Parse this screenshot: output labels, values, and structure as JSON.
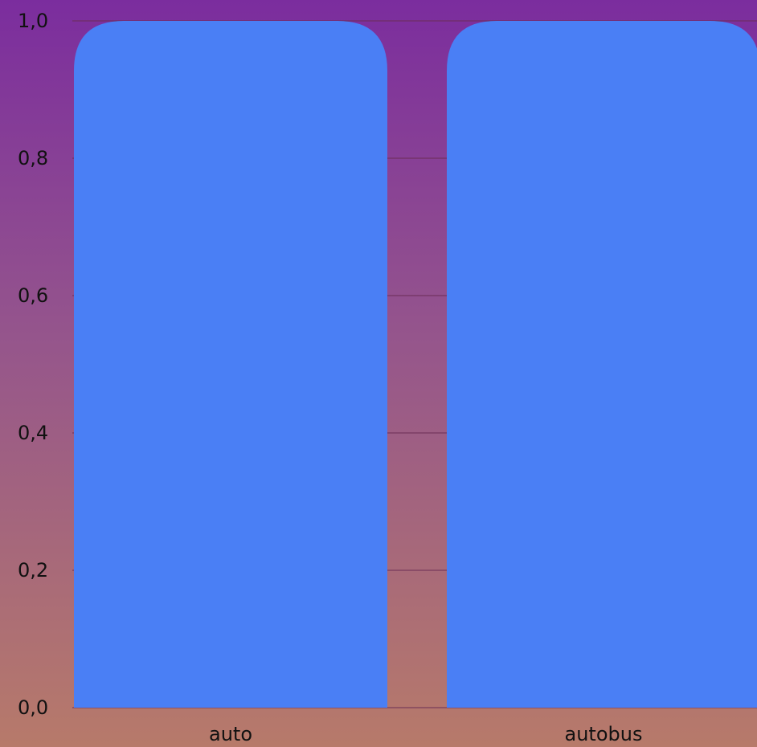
{
  "chart_data": {
    "type": "bar",
    "categories": [
      "auto",
      "autobus"
    ],
    "values": [
      1.0,
      1.0
    ],
    "title": "",
    "xlabel": "",
    "ylabel": "",
    "ylim": [
      0,
      1
    ],
    "yticks": [
      "0,0",
      "0,2",
      "0,4",
      "0,6",
      "0,8",
      "1,0"
    ],
    "grid": true,
    "legend": "none",
    "bar_color": "#4a7ff5",
    "gridline_color": "#6b2d55"
  }
}
